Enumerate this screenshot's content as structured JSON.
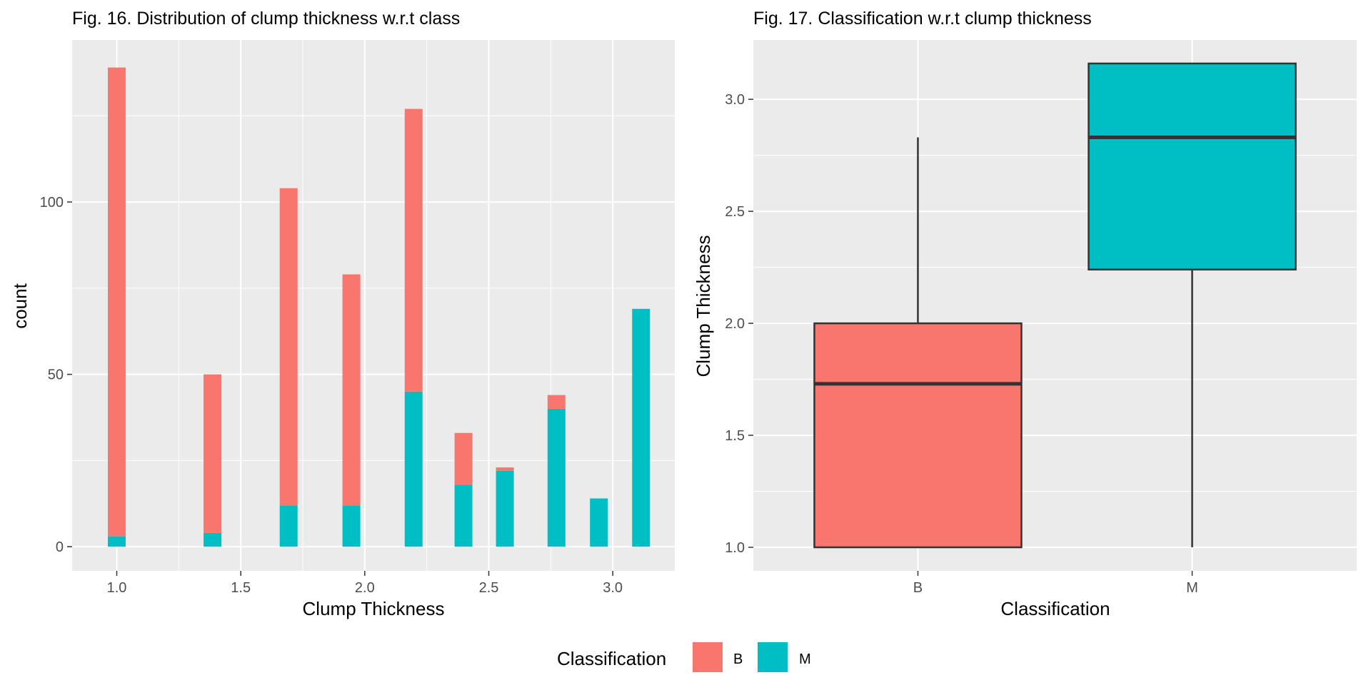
{
  "colors": {
    "B": "#F8766D",
    "M": "#00BFC4",
    "panel": "#EBEBEB",
    "grid": "#FFFFFF",
    "box_line": "#333333"
  },
  "legend": {
    "title": "Classification",
    "entries": [
      {
        "label": "B",
        "color": "#F8766D"
      },
      {
        "label": "M",
        "color": "#00BFC4"
      }
    ]
  },
  "chart_data": [
    {
      "type": "bar",
      "title": "Fig. 16. Distribution of clump thickness w.r.t class",
      "xlabel": "Clump Thickness",
      "ylabel": "count",
      "stacked": true,
      "xlim": [
        0.82,
        3.25
      ],
      "ylim": [
        -7,
        147
      ],
      "x_ticks": [
        "1.0",
        "1.5",
        "2.0",
        "2.5",
        "3.0"
      ],
      "x_tick_values": [
        1.0,
        1.5,
        2.0,
        2.5,
        3.0
      ],
      "y_ticks": [
        "0",
        "50",
        "100"
      ],
      "y_tick_values": [
        0,
        50,
        100
      ],
      "bin_width": 0.072,
      "x": [
        1.0,
        1.386,
        1.693,
        1.946,
        2.197,
        2.398,
        2.565,
        2.773,
        2.944,
        3.114
      ],
      "series": [
        {
          "name": "B",
          "values": [
            136,
            46,
            92,
            67,
            82,
            15,
            1,
            4,
            0,
            0
          ]
        },
        {
          "name": "M",
          "values": [
            3,
            4,
            12,
            12,
            45,
            18,
            22,
            40,
            14,
            69
          ]
        }
      ],
      "grid": true,
      "legend_position": "bottom"
    },
    {
      "type": "box",
      "title": "Fig. 17. Classification w.r.t clump thickness",
      "xlabel": "Classification",
      "ylabel": "Clump Thickness",
      "categories": [
        "B",
        "M"
      ],
      "ylim": [
        0.895,
        3.265
      ],
      "y_ticks": [
        "1.0",
        "1.5",
        "2.0",
        "2.5",
        "3.0"
      ],
      "y_tick_values": [
        1.0,
        1.5,
        2.0,
        2.5,
        3.0
      ],
      "boxes": [
        {
          "name": "B",
          "min": 1.0,
          "q1": 1.0,
          "median": 1.73,
          "q3": 2.0,
          "max": 2.83
        },
        {
          "name": "M",
          "min": 1.0,
          "q1": 2.24,
          "median": 2.83,
          "q3": 3.16,
          "max": 3.16
        }
      ],
      "grid": true,
      "legend_position": "bottom"
    }
  ]
}
